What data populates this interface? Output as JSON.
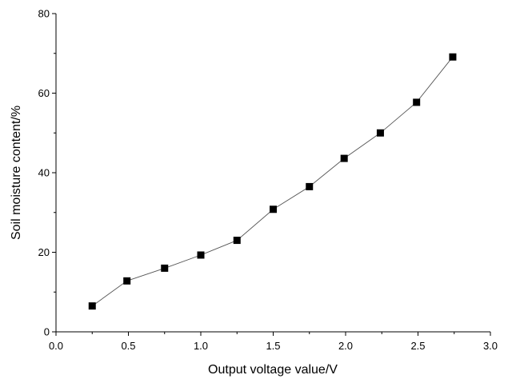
{
  "chart_data": {
    "type": "line",
    "title": "",
    "xlabel": "Output voltage value/V",
    "ylabel": "Soil moisture content/%",
    "xlim": [
      0.0,
      3.0
    ],
    "ylim": [
      0,
      80
    ],
    "x_ticks": [
      "0.0",
      "0.5",
      "1.0",
      "1.5",
      "2.0",
      "2.5",
      "3.0"
    ],
    "y_ticks": [
      "0",
      "20",
      "40",
      "60",
      "80"
    ],
    "grid": false,
    "legend": "none",
    "marker": "square",
    "series": [
      {
        "x": [
          0.25,
          0.49,
          0.75,
          1.0,
          1.25,
          1.5,
          1.75,
          1.99,
          2.24,
          2.49,
          2.74
        ],
        "y": [
          6.5,
          12.8,
          16.0,
          19.3,
          23.0,
          30.8,
          36.5,
          43.6,
          50.0,
          57.7,
          69.1
        ]
      }
    ],
    "colors": {
      "line": "#555555",
      "marker": "#000000",
      "axis": "#000000"
    }
  }
}
